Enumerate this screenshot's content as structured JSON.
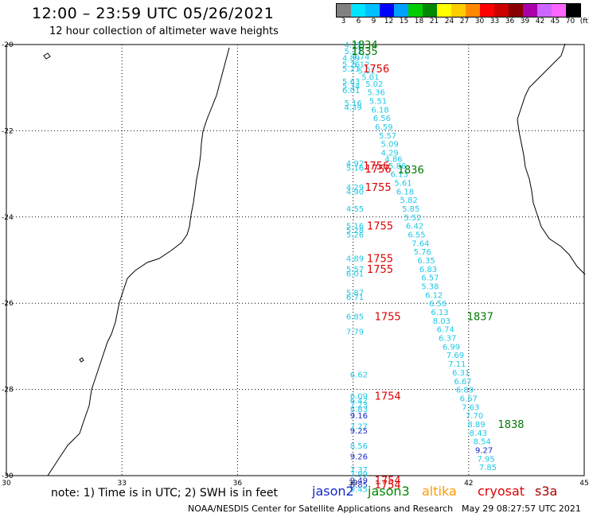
{
  "header": {
    "title": "12:00 – 23:59 UTC 05/26/2021",
    "subtitle": "12 hour collection of altimeter wave heights"
  },
  "legend": {
    "colors": [
      "#808080",
      "#00e5ff",
      "#00c0ff",
      "#0000ff",
      "#00a0ff",
      "#00cc00",
      "#008800",
      "#ffff00",
      "#ffcc00",
      "#ff8800",
      "#ff0000",
      "#cc0000",
      "#880000",
      "#aa00aa",
      "#cc66ff",
      "#ff66ff",
      "#000000"
    ],
    "labels": [
      "3",
      "6",
      "9",
      "12",
      "15",
      "18",
      "21",
      "24",
      "27",
      "30",
      "33",
      "36",
      "39",
      "42",
      "45",
      "70",
      "(ft)"
    ]
  },
  "axes": {
    "lon_labels": [
      "30",
      "33",
      "36",
      "39",
      "42",
      "45"
    ],
    "lat_labels": [
      "-20",
      "-22",
      "-24",
      "-26",
      "-28",
      "-30"
    ]
  },
  "colors": {
    "cyan": "#1ec8e6",
    "blue": "#1428c8",
    "green": "#007a00",
    "red": "#dd0000",
    "orange": "#ff9900",
    "darkred": "#aa0000"
  },
  "tracks": {
    "jason3_diag": {
      "color": "cyan",
      "points": [
        [
          39.0,
          -20.0,
          "4.75"
        ],
        [
          39.0,
          -20.15,
          "5.23"
        ],
        [
          38.95,
          -20.3,
          "4.89"
        ],
        [
          39.2,
          -20.28,
          "4.74"
        ],
        [
          38.95,
          -20.45,
          "5.26"
        ],
        [
          39.2,
          -20.45,
          "5.12"
        ],
        [
          39.35,
          -20.6,
          "5.01"
        ],
        [
          39.45,
          -20.75,
          "5.01"
        ],
        [
          39.55,
          -20.9,
          "5.02"
        ],
        [
          39.6,
          -21.1,
          "5.36"
        ],
        [
          39.65,
          -21.3,
          "5.51"
        ],
        [
          39.7,
          -21.5,
          "6.18"
        ],
        [
          39.75,
          -21.7,
          "6.56"
        ],
        [
          39.8,
          -21.9,
          "6.59"
        ],
        [
          39.9,
          -22.1,
          "5.57"
        ],
        [
          39.95,
          -22.3,
          "5.09"
        ],
        [
          39.95,
          -22.5,
          "4.29"
        ],
        [
          40.05,
          -22.65,
          "4.86"
        ],
        [
          40.15,
          -22.8,
          "5.88"
        ],
        [
          40.2,
          -23.0,
          "6.13"
        ],
        [
          40.3,
          -23.2,
          "5.61"
        ],
        [
          40.35,
          -23.4,
          "6.18"
        ],
        [
          40.45,
          -23.6,
          "5.82"
        ],
        [
          40.5,
          -23.8,
          "5.85"
        ],
        [
          40.55,
          -24.0,
          "5.52"
        ],
        [
          40.6,
          -24.2,
          "6.42"
        ],
        [
          40.65,
          -24.4,
          "6.55"
        ],
        [
          40.75,
          -24.6,
          "7.64"
        ],
        [
          40.8,
          -24.8,
          "5.76"
        ],
        [
          40.9,
          -25.0,
          "6.35"
        ],
        [
          40.95,
          -25.2,
          "6.83"
        ],
        [
          41.0,
          -25.4,
          "6.57"
        ],
        [
          41.0,
          -25.6,
          "5.38"
        ],
        [
          41.1,
          -25.8,
          "6.12"
        ],
        [
          41.2,
          -26.0,
          "6.56"
        ],
        [
          41.25,
          -26.2,
          "6.13"
        ],
        [
          41.3,
          -26.4,
          "8.03"
        ],
        [
          41.4,
          -26.6,
          "6.74"
        ],
        [
          41.45,
          -26.8,
          "6.37"
        ],
        [
          41.55,
          -27.0,
          "6.99"
        ],
        [
          41.65,
          -27.2,
          "7.69"
        ],
        [
          41.7,
          -27.4,
          "7.11"
        ],
        [
          41.8,
          -27.6,
          "6.31"
        ],
        [
          41.85,
          -27.8,
          "6.67"
        ],
        [
          41.9,
          -28.0,
          "6.89"
        ],
        [
          42.0,
          -28.2,
          "6.67"
        ],
        [
          42.05,
          -28.4,
          "7.63"
        ],
        [
          42.15,
          -28.6,
          "7.70"
        ],
        [
          42.2,
          -28.8,
          "8.89"
        ],
        [
          42.25,
          -29.0,
          "8.43"
        ],
        [
          42.35,
          -29.2,
          "8.54"
        ],
        [
          42.45,
          -29.6,
          "7.95"
        ],
        [
          42.5,
          -29.8,
          "7.85"
        ]
      ]
    },
    "jason3_blue": {
      "color": "blue",
      "points": [
        [
          42.4,
          -29.4,
          "9.27"
        ]
      ]
    },
    "cryosat_col": {
      "color": "cyan",
      "points": [
        [
          38.95,
          -20.55,
          "5.21"
        ],
        [
          38.95,
          -20.85,
          "5.63"
        ],
        [
          38.95,
          -20.95,
          "5.34"
        ],
        [
          38.95,
          -21.05,
          "6.01"
        ],
        [
          39.0,
          -21.35,
          "5.16"
        ],
        [
          39.0,
          -21.45,
          "4.39"
        ],
        [
          39.05,
          -22.75,
          "4.92"
        ],
        [
          39.05,
          -22.85,
          "5.16"
        ],
        [
          39.05,
          -23.3,
          "4.29"
        ],
        [
          39.05,
          -23.4,
          "4.90"
        ],
        [
          39.05,
          -23.8,
          "4.55"
        ],
        [
          39.05,
          -24.2,
          "5.16"
        ],
        [
          39.05,
          -24.3,
          "5.28"
        ],
        [
          39.05,
          -24.4,
          "5.26"
        ],
        [
          39.05,
          -24.95,
          "4.89"
        ],
        [
          39.05,
          -25.2,
          "5.57"
        ],
        [
          39.05,
          -25.3,
          "6.01"
        ],
        [
          39.05,
          -25.75,
          "5.87"
        ],
        [
          39.05,
          -25.85,
          "6.71"
        ],
        [
          39.05,
          -26.3,
          "6.85"
        ],
        [
          39.05,
          -26.65,
          "7.79"
        ],
        [
          39.15,
          -27.65,
          "6.62"
        ],
        [
          39.15,
          -28.15,
          "6.09"
        ],
        [
          39.15,
          -28.25,
          "6.42"
        ],
        [
          39.15,
          -28.35,
          "7.23"
        ],
        [
          39.15,
          -28.45,
          "8.83"
        ]
      ]
    },
    "cryosat_blue": {
      "color": "blue",
      "points": [
        [
          39.15,
          -28.6,
          "9.16"
        ],
        [
          39.15,
          -28.95,
          "9.25"
        ],
        [
          39.15,
          -29.55,
          "9.26"
        ],
        [
          39.15,
          -30.1,
          "9.49"
        ],
        [
          39.15,
          -30.2,
          "8.85"
        ]
      ]
    },
    "cryosat_low": {
      "color": "cyan",
      "points": [
        [
          39.15,
          -28.85,
          "7.27"
        ],
        [
          39.15,
          -29.3,
          "8.56"
        ],
        [
          39.15,
          -29.85,
          "7.37"
        ],
        [
          39.15,
          -29.95,
          "7.99"
        ],
        [
          39.15,
          -30.3,
          "9.45"
        ]
      ]
    }
  },
  "time_labels": [
    {
      "lon": 39.3,
      "lat": -20.0,
      "text": "1834",
      "color": "green"
    },
    {
      "lon": 39.3,
      "lat": -20.15,
      "text": "1835",
      "color": "green"
    },
    {
      "lon": 39.6,
      "lat": -20.55,
      "text": "1756",
      "color": "red"
    },
    {
      "lon": 39.6,
      "lat": -22.8,
      "text": "1756",
      "color": "red"
    },
    {
      "lon": 39.65,
      "lat": -22.88,
      "text": "1756",
      "color": "red"
    },
    {
      "lon": 40.5,
      "lat": -22.9,
      "text": "1836",
      "color": "green"
    },
    {
      "lon": 39.65,
      "lat": -23.3,
      "text": "1755",
      "color": "red"
    },
    {
      "lon": 39.7,
      "lat": -24.2,
      "text": "1755",
      "color": "red"
    },
    {
      "lon": 39.7,
      "lat": -24.95,
      "text": "1755",
      "color": "red"
    },
    {
      "lon": 39.7,
      "lat": -25.2,
      "text": "1755",
      "color": "red"
    },
    {
      "lon": 39.9,
      "lat": -26.3,
      "text": "1755",
      "color": "red"
    },
    {
      "lon": 42.3,
      "lat": -26.3,
      "text": "1837",
      "color": "green"
    },
    {
      "lon": 39.9,
      "lat": -28.15,
      "text": "1754",
      "color": "red"
    },
    {
      "lon": 43.1,
      "lat": -28.8,
      "text": "1838",
      "color": "green"
    },
    {
      "lon": 39.9,
      "lat": -30.1,
      "text": "1754",
      "color": "red"
    },
    {
      "lon": 39.9,
      "lat": -30.2,
      "text": "1754",
      "color": "red"
    }
  ],
  "footer": {
    "note": "note: 1) Time is in UTC; 2) SWH is in feet",
    "sat_jason2": "jason2",
    "sat_jason3": "jason3",
    "sat_altika": "altika",
    "sat_cryosat": "cryosat",
    "sat_s3a": "s3a",
    "credit": "NOAA/NESDIS Center for Satellite Applications and Research",
    "timestamp": "May 29 08:27:57 UTC 2021"
  }
}
